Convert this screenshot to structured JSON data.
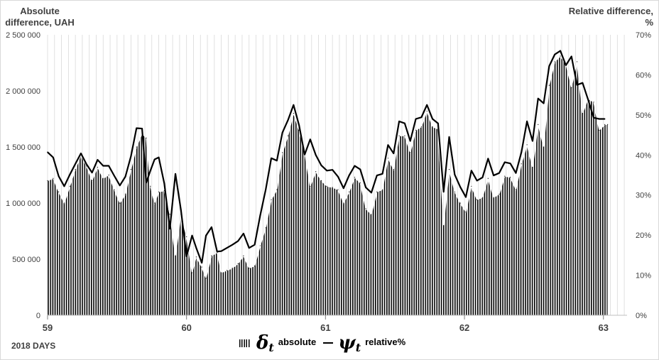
{
  "chart_data": {
    "type": "bar+line",
    "left_axis_title": "Absolute difference, UAH",
    "right_axis_title": "Relative difference, %",
    "xlabel": "2018 DAYS",
    "x_ticks": [
      "59",
      "60",
      "61",
      "62",
      "63"
    ],
    "y_left_ticks": [
      "0",
      "500 000",
      "1 000 000",
      "1 500 000",
      "2 000 000",
      "2 500 000"
    ],
    "y_right_ticks": [
      "0%",
      "10%",
      "20%",
      "30%",
      "40%",
      "50%",
      "60%",
      "70%"
    ],
    "ylim_left": [
      0,
      2500000
    ],
    "ylim_right": [
      0,
      70
    ],
    "xlim": [
      59,
      63.17
    ],
    "grid": "vertical gridlines",
    "legend": {
      "absolute": {
        "symbol": "δ",
        "subscript": "t",
        "label": "absolute"
      },
      "relative": {
        "symbol": "ψ",
        "subscript": "t",
        "label": "relative%"
      }
    },
    "series": [
      {
        "name": "absolute",
        "kind": "hatched-bars",
        "axis": "left",
        "points": [
          [
            59.0,
            1200000
          ],
          [
            59.04,
            1220000
          ],
          [
            59.08,
            1100000
          ],
          [
            59.12,
            1000000
          ],
          [
            59.16,
            1150000
          ],
          [
            59.2,
            1300000
          ],
          [
            59.24,
            1430000
          ],
          [
            59.28,
            1330000
          ],
          [
            59.32,
            1200000
          ],
          [
            59.36,
            1320000
          ],
          [
            59.4,
            1220000
          ],
          [
            59.44,
            1250000
          ],
          [
            59.48,
            1120000
          ],
          [
            59.52,
            1000000
          ],
          [
            59.56,
            1080000
          ],
          [
            59.6,
            1300000
          ],
          [
            59.64,
            1500000
          ],
          [
            59.68,
            1620000
          ],
          [
            59.71,
            1580000
          ],
          [
            59.74,
            1150000
          ],
          [
            59.77,
            1000000
          ],
          [
            59.8,
            1100000
          ],
          [
            59.84,
            1110000
          ],
          [
            59.88,
            900000
          ],
          [
            59.92,
            530000
          ],
          [
            59.96,
            900000
          ],
          [
            60.0,
            700000
          ],
          [
            60.04,
            380000
          ],
          [
            60.07,
            520000
          ],
          [
            60.11,
            430000
          ],
          [
            60.14,
            330000
          ],
          [
            60.18,
            530000
          ],
          [
            60.22,
            560000
          ],
          [
            60.25,
            380000
          ],
          [
            60.29,
            400000
          ],
          [
            60.33,
            420000
          ],
          [
            60.37,
            460000
          ],
          [
            60.41,
            530000
          ],
          [
            60.45,
            420000
          ],
          [
            60.49,
            440000
          ],
          [
            60.53,
            620000
          ],
          [
            60.57,
            780000
          ],
          [
            60.61,
            1030000
          ],
          [
            60.65,
            1120000
          ],
          [
            60.69,
            1450000
          ],
          [
            60.73,
            1600000
          ],
          [
            60.77,
            1800000
          ],
          [
            60.81,
            1650000
          ],
          [
            60.85,
            1450000
          ],
          [
            60.89,
            1150000
          ],
          [
            60.93,
            1280000
          ],
          [
            60.97,
            1200000
          ],
          [
            61.01,
            1150000
          ],
          [
            61.05,
            1140000
          ],
          [
            61.09,
            1120000
          ],
          [
            61.13,
            1000000
          ],
          [
            61.17,
            1100000
          ],
          [
            61.21,
            1230000
          ],
          [
            61.25,
            1180000
          ],
          [
            61.29,
            950000
          ],
          [
            61.33,
            900000
          ],
          [
            61.37,
            1100000
          ],
          [
            61.41,
            1120000
          ],
          [
            61.45,
            1400000
          ],
          [
            61.49,
            1300000
          ],
          [
            61.53,
            1600000
          ],
          [
            61.57,
            1600000
          ],
          [
            61.61,
            1450000
          ],
          [
            61.65,
            1650000
          ],
          [
            61.69,
            1680000
          ],
          [
            61.73,
            1820000
          ],
          [
            61.77,
            1680000
          ],
          [
            61.81,
            1660000
          ],
          [
            61.85,
            800000
          ],
          [
            61.89,
            1300000
          ],
          [
            61.93,
            1100000
          ],
          [
            61.97,
            1000000
          ],
          [
            62.01,
            920000
          ],
          [
            62.05,
            1150000
          ],
          [
            62.09,
            1030000
          ],
          [
            62.13,
            1050000
          ],
          [
            62.17,
            1220000
          ],
          [
            62.21,
            1050000
          ],
          [
            62.25,
            1080000
          ],
          [
            62.29,
            1240000
          ],
          [
            62.33,
            1230000
          ],
          [
            62.37,
            1120000
          ],
          [
            62.41,
            1350000
          ],
          [
            62.45,
            1520000
          ],
          [
            62.49,
            1320000
          ],
          [
            62.53,
            1700000
          ],
          [
            62.57,
            1500000
          ],
          [
            62.61,
            2050000
          ],
          [
            62.65,
            2260000
          ],
          [
            62.69,
            2310000
          ],
          [
            62.73,
            2240000
          ],
          [
            62.77,
            2030000
          ],
          [
            62.81,
            2260000
          ],
          [
            62.85,
            1800000
          ],
          [
            62.89,
            1930000
          ],
          [
            62.93,
            1900000
          ],
          [
            62.97,
            1650000
          ],
          [
            63.01,
            1700000
          ],
          [
            63.03,
            1700000
          ]
        ]
      },
      {
        "name": "relative%",
        "kind": "line",
        "axis": "right",
        "points": [
          [
            59.0,
            40.7
          ],
          [
            59.04,
            39.4
          ],
          [
            59.08,
            34.7
          ],
          [
            59.12,
            32.2
          ],
          [
            59.16,
            35.1
          ],
          [
            59.2,
            37.8
          ],
          [
            59.24,
            40.4
          ],
          [
            59.28,
            37.7
          ],
          [
            59.32,
            35.6
          ],
          [
            59.36,
            38.8
          ],
          [
            59.4,
            37.3
          ],
          [
            59.44,
            37.3
          ],
          [
            59.48,
            34.8
          ],
          [
            59.52,
            32.4
          ],
          [
            59.56,
            34.6
          ],
          [
            59.6,
            39.7
          ],
          [
            59.64,
            46.7
          ],
          [
            59.68,
            46.6
          ],
          [
            59.71,
            33.1
          ],
          [
            59.74,
            36.1
          ],
          [
            59.77,
            38.9
          ],
          [
            59.8,
            39.4
          ],
          [
            59.84,
            32.9
          ],
          [
            59.88,
            21.6
          ],
          [
            59.92,
            35.3
          ],
          [
            59.96,
            26.2
          ],
          [
            60.0,
            14.7
          ],
          [
            60.04,
            19.9
          ],
          [
            60.07,
            16.8
          ],
          [
            60.11,
            13.1
          ],
          [
            60.14,
            19.9
          ],
          [
            60.18,
            22.0
          ],
          [
            60.22,
            15.9
          ],
          [
            60.25,
            16.0
          ],
          [
            60.29,
            16.8
          ],
          [
            60.33,
            17.6
          ],
          [
            60.37,
            18.5
          ],
          [
            60.41,
            20.4
          ],
          [
            60.45,
            16.8
          ],
          [
            60.49,
            17.6
          ],
          [
            60.53,
            24.9
          ],
          [
            60.57,
            31.4
          ],
          [
            60.61,
            39.2
          ],
          [
            60.65,
            38.6
          ],
          [
            60.69,
            45.6
          ],
          [
            60.73,
            48.7
          ],
          [
            60.77,
            52.5
          ],
          [
            60.81,
            47.4
          ],
          [
            60.85,
            40.1
          ],
          [
            60.89,
            43.9
          ],
          [
            60.93,
            40.0
          ],
          [
            60.97,
            37.4
          ],
          [
            61.01,
            36.1
          ],
          [
            61.05,
            36.3
          ],
          [
            61.09,
            34.6
          ],
          [
            61.13,
            31.7
          ],
          [
            61.17,
            34.9
          ],
          [
            61.21,
            37.3
          ],
          [
            61.25,
            36.4
          ],
          [
            61.29,
            31.9
          ],
          [
            61.33,
            30.6
          ],
          [
            61.37,
            34.9
          ],
          [
            61.41,
            35.3
          ],
          [
            61.45,
            42.5
          ],
          [
            61.49,
            40.4
          ],
          [
            61.53,
            48.4
          ],
          [
            61.57,
            47.9
          ],
          [
            61.61,
            43.5
          ],
          [
            61.65,
            49.0
          ],
          [
            61.69,
            49.4
          ],
          [
            61.73,
            52.5
          ],
          [
            61.77,
            49.0
          ],
          [
            61.81,
            47.9
          ],
          [
            61.85,
            30.8
          ],
          [
            61.89,
            44.5
          ],
          [
            61.93,
            35.1
          ],
          [
            61.97,
            32.0
          ],
          [
            62.01,
            29.5
          ],
          [
            62.05,
            36.1
          ],
          [
            62.09,
            33.6
          ],
          [
            62.13,
            34.4
          ],
          [
            62.17,
            39.1
          ],
          [
            62.21,
            34.9
          ],
          [
            62.25,
            35.5
          ],
          [
            62.29,
            38.2
          ],
          [
            62.33,
            37.9
          ],
          [
            62.37,
            35.5
          ],
          [
            62.41,
            40.7
          ],
          [
            62.45,
            48.4
          ],
          [
            62.49,
            43.5
          ],
          [
            62.53,
            54.1
          ],
          [
            62.57,
            52.9
          ],
          [
            62.61,
            62.2
          ],
          [
            62.65,
            65.1
          ],
          [
            62.69,
            66.0
          ],
          [
            62.73,
            62.4
          ],
          [
            62.77,
            64.6
          ],
          [
            62.81,
            57.5
          ],
          [
            62.85,
            58.0
          ],
          [
            62.89,
            53.8
          ],
          [
            62.93,
            49.3
          ],
          [
            62.97,
            49.0
          ],
          [
            63.01,
            49.0
          ]
        ]
      }
    ]
  }
}
